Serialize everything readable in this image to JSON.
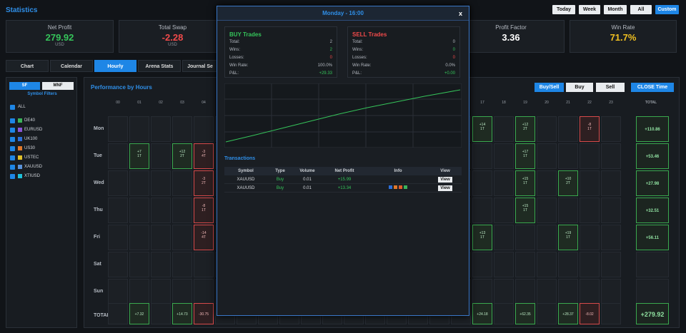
{
  "header": {
    "title": "Statistics",
    "periods": [
      "Today",
      "Week",
      "Month",
      "All",
      "Custom"
    ],
    "active_period": "Custom"
  },
  "cards": [
    {
      "label": "Net Profit",
      "value": "279.92",
      "sub": "USD",
      "color": "#35c45a"
    },
    {
      "label": "Total Swap",
      "value": "-2.28",
      "sub": "USD",
      "color": "#f04a4a"
    },
    {
      "label": "Profit Factor",
      "value": "3.36",
      "sub": "",
      "color": "#ffffff"
    },
    {
      "label": "Win Rate",
      "value": "71.7%",
      "sub": "",
      "color": "#f0c020"
    }
  ],
  "tabs": [
    "Chart",
    "Calendar",
    "Hourly",
    "Arena Stats",
    "Journal Se"
  ],
  "active_tab": "Hourly",
  "sidebar": {
    "sf": "SF",
    "mnf": "MNF",
    "filters_title": "Symbol Filters",
    "all": "ALL",
    "symbols": [
      {
        "name": "DE40",
        "color": "#3bb35a"
      },
      {
        "name": "EURUSD",
        "color": "#8a55d6"
      },
      {
        "name": "UK100",
        "color": "#2d6fd8"
      },
      {
        "name": "US30",
        "color": "#e0782a"
      },
      {
        "name": "USTEC",
        "color": "#e0c02a"
      },
      {
        "name": "XAUUSD",
        "color": "#5a92d8"
      },
      {
        "name": "XTIUSD",
        "color": "#1ec0d8"
      }
    ]
  },
  "main": {
    "title": "Performance by Hours",
    "filter_buttons": [
      "Buy/Sell",
      "Buy",
      "Sell"
    ],
    "close_time": "CLOSE Time",
    "total_label": "TOTAL",
    "hours": [
      "00",
      "01",
      "02",
      "03",
      "04",
      "17",
      "18",
      "19",
      "20",
      "21",
      "22",
      "23"
    ],
    "days": [
      "Mon",
      "Tue",
      "Wed",
      "Thu",
      "Fri",
      "Sat",
      "Sun",
      "TOTAL"
    ],
    "cells": {
      "mon_17": {
        "v": "+14",
        "t": "1T"
      },
      "mon_19": {
        "v": "+12",
        "t": "2T"
      },
      "mon_22": {
        "v": "-8",
        "t": "1T"
      },
      "tue_01": {
        "v": "+7",
        "t": "1T"
      },
      "tue_03": {
        "v": "+12",
        "t": "2T"
      },
      "tue_04": {
        "v": "-3",
        "t": "4T"
      },
      "tue_19": {
        "v": "+17",
        "t": "1T"
      },
      "wed_04": {
        "v": "-3",
        "t": "2T"
      },
      "wed_19": {
        "v": "+15",
        "t": "1T"
      },
      "wed_21": {
        "v": "+10",
        "t": "2T"
      },
      "thu_04": {
        "v": "-8",
        "t": "1T"
      },
      "thu_19": {
        "v": "+15",
        "t": "1T"
      },
      "fri_04": {
        "v": "-14",
        "t": "4T"
      },
      "fri_17": {
        "v": "+13",
        "t": "1T"
      },
      "fri_21": {
        "v": "+19",
        "t": "1T"
      }
    },
    "hour_totals": {
      "h01": "+7.32",
      "h03": "+14.73",
      "h04": "-30.75",
      "h17": "+24.18",
      "h19": "+62.35",
      "h21": "+28.37",
      "h22": "-8.02"
    },
    "day_totals": [
      "+110.86",
      "+53.46",
      "+27.98",
      "+32.51",
      "+56.11",
      "",
      "",
      "+279.92"
    ]
  },
  "modal": {
    "title": "Monday - 16:00",
    "close": "x",
    "buy": {
      "title": "BUY Trades",
      "total_l": "Total:",
      "total": "2",
      "wins_l": "Wins:",
      "wins": "2",
      "losses_l": "Losses:",
      "losses": "0",
      "wr_l": "Win Rate:",
      "wr": "100.0%",
      "pl_l": "P&L:",
      "pl": "+29.33"
    },
    "sell": {
      "title": "SELL Trades",
      "total_l": "Total:",
      "total": "0",
      "wins_l": "Wins:",
      "wins": "0",
      "losses_l": "Losses:",
      "losses": "0",
      "wr_l": "Win Rate:",
      "wr": "0.0%",
      "pl_l": "P&L:",
      "pl": "+0.00"
    },
    "transactions_title": "Transactions",
    "columns": [
      "Symbol",
      "Type",
      "Volume",
      "Net Profit",
      "Info",
      "View"
    ],
    "rows": [
      {
        "symbol": "XAUUSD",
        "type": "Buy",
        "volume": "0.01",
        "profit": "+15.99",
        "view": "View",
        "info": []
      },
      {
        "symbol": "XAUUSD",
        "type": "Buy",
        "volume": "0.01",
        "profit": "+13.34",
        "view": "View",
        "info": [
          "#2d6fd8",
          "#e0782a",
          "#e05a2a",
          "#3bb35a"
        ]
      }
    ]
  }
}
